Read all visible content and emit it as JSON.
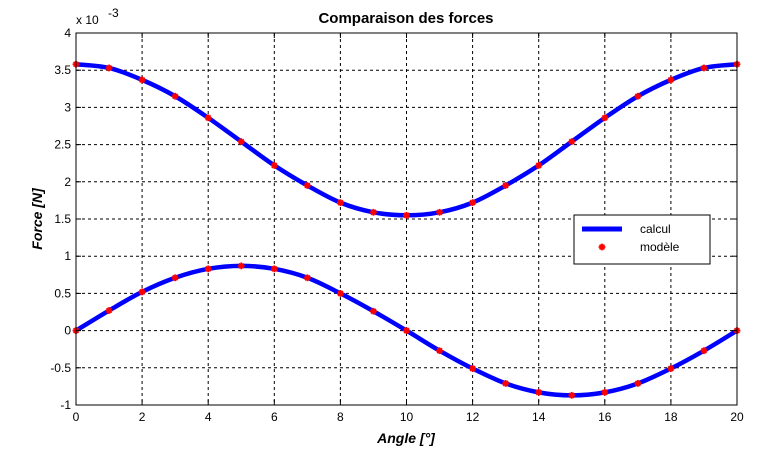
{
  "chart_data": {
    "type": "line",
    "title": "Comparaison des forces",
    "xlabel": "Angle [°]",
    "ylabel": "Force [N]",
    "exponent_label": "x 10",
    "exponent_power": "-3",
    "xlim": [
      0,
      20
    ],
    "ylim": [
      -1,
      4
    ],
    "xticks": [
      0,
      2,
      4,
      6,
      8,
      10,
      12,
      14,
      16,
      18,
      20
    ],
    "yticks": [
      -1,
      -0.5,
      0,
      0.5,
      1,
      1.5,
      2,
      2.5,
      3,
      3.5,
      4
    ],
    "grid": true,
    "legend_position": "right",
    "colors": {
      "calcul": "#0000ff",
      "modele": "#ff0000"
    },
    "series": [
      {
        "name": "calcul",
        "style": "thick-line",
        "curves": [
          {
            "x": [
              0,
              1,
              2,
              3,
              4,
              5,
              6,
              7,
              8,
              9,
              10,
              11,
              12,
              13,
              14,
              15,
              16,
              17,
              18,
              19,
              20
            ],
            "y": [
              3.58,
              3.53,
              3.37,
              3.15,
              2.86,
              2.54,
              2.22,
              1.95,
              1.72,
              1.59,
              1.55,
              1.59,
              1.72,
              1.95,
              2.22,
              2.54,
              2.86,
              3.15,
              3.37,
              3.53,
              3.58
            ]
          },
          {
            "x": [
              0,
              1,
              2,
              3,
              4,
              5,
              6,
              7,
              8,
              9,
              10,
              11,
              12,
              13,
              14,
              15,
              16,
              17,
              18,
              19,
              20
            ],
            "y": [
              0,
              0.27,
              0.52,
              0.71,
              0.83,
              0.87,
              0.83,
              0.71,
              0.5,
              0.26,
              0,
              -0.27,
              -0.51,
              -0.71,
              -0.83,
              -0.87,
              -0.83,
              -0.71,
              -0.51,
              -0.27,
              0
            ]
          }
        ]
      },
      {
        "name": "modèle",
        "style": "markers",
        "curves": [
          {
            "x": [
              0,
              1,
              2,
              3,
              4,
              5,
              6,
              7,
              8,
              9,
              10,
              11,
              12,
              13,
              14,
              15,
              16,
              17,
              18,
              19,
              20
            ],
            "y": [
              3.58,
              3.53,
              3.37,
              3.15,
              2.86,
              2.54,
              2.22,
              1.95,
              1.72,
              1.59,
              1.55,
              1.59,
              1.72,
              1.95,
              2.22,
              2.54,
              2.86,
              3.15,
              3.37,
              3.53,
              3.58
            ]
          },
          {
            "x": [
              0,
              1,
              2,
              3,
              4,
              5,
              6,
              7,
              8,
              9,
              10,
              11,
              12,
              13,
              14,
              15,
              16,
              17,
              18,
              19,
              20
            ],
            "y": [
              0,
              0.27,
              0.52,
              0.71,
              0.83,
              0.87,
              0.83,
              0.71,
              0.5,
              0.26,
              0,
              -0.27,
              -0.51,
              -0.71,
              -0.83,
              -0.87,
              -0.83,
              -0.71,
              -0.51,
              -0.27,
              0
            ]
          }
        ]
      }
    ]
  }
}
